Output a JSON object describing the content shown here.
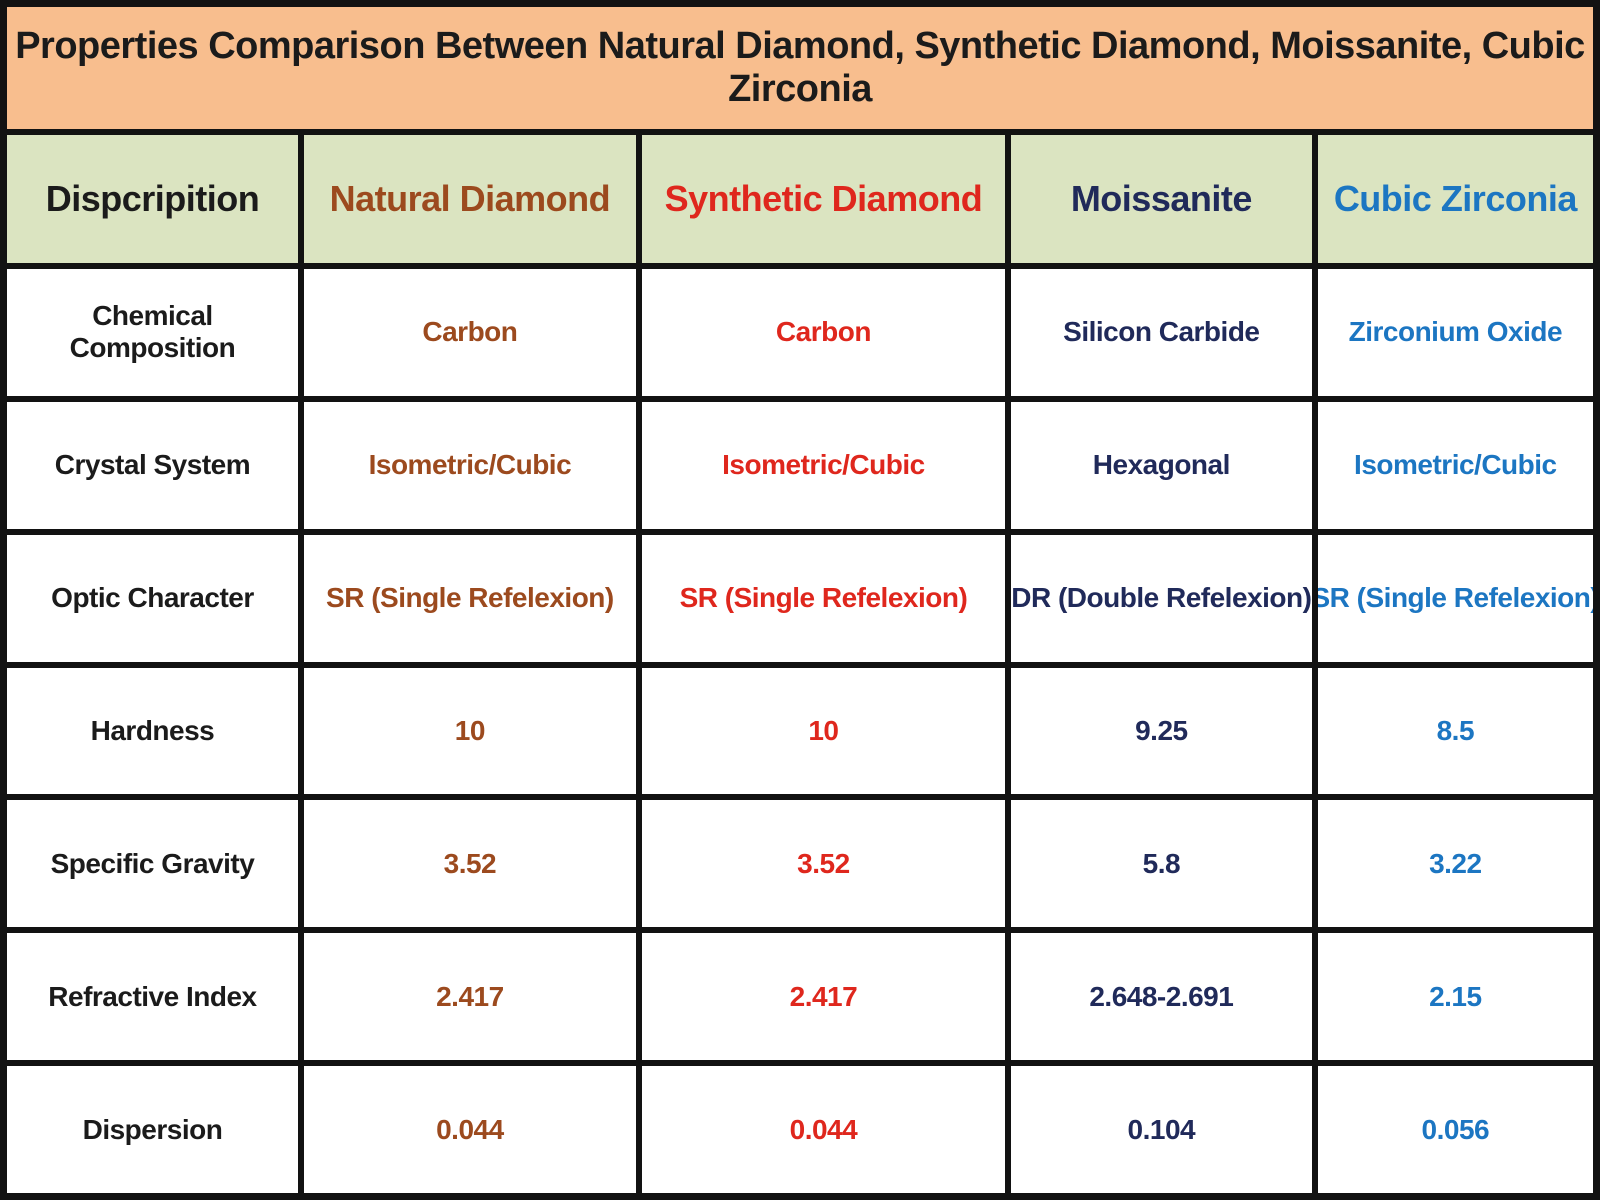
{
  "title": "Properties Comparison Between Natural Diamond, Synthetic Diamond, Moissanite, Cubic Zirconia",
  "columns": [
    "Dispcripition",
    "Natural Diamond",
    "Synthetic Diamond",
    "Moissanite",
    "Cubic Zirconia"
  ],
  "rows": [
    {
      "label": "Chemical Composition",
      "values": [
        "Carbon",
        "Carbon",
        "Silicon Carbide",
        "Zirconium Oxide"
      ]
    },
    {
      "label": "Crystal System",
      "values": [
        "Isometric/Cubic",
        "Isometric/Cubic",
        "Hexagonal",
        "Isometric/Cubic"
      ]
    },
    {
      "label": "Optic Character",
      "values": [
        "SR (Single Refelexion)",
        "SR (Single Refelexion)",
        "DR (Double Refelexion)",
        "SR (Single Refelexion)"
      ]
    },
    {
      "label": "Hardness",
      "values": [
        "10",
        "10",
        "9.25",
        "8.5"
      ]
    },
    {
      "label": "Specific Gravity",
      "values": [
        "3.52",
        "3.52",
        "5.8",
        "3.22"
      ]
    },
    {
      "label": "Refractive Index",
      "values": [
        "2.417",
        "2.417",
        "2.648-2.691",
        "2.15"
      ]
    },
    {
      "label": "Dispersion",
      "values": [
        "0.044",
        "0.044",
        "0.104",
        "0.056"
      ]
    }
  ],
  "colors": {
    "title_bg": "#F8BE8E",
    "header_bg": "#DBE4C1",
    "border": "#121212",
    "description_text": "#1B1B1B",
    "natural_diamond_text": "#9C4A1E",
    "synthetic_diamond_text": "#DF271D",
    "moissanite_text": "#202A5A",
    "cubic_zirconia_text": "#1C76C2"
  },
  "chart_data": {
    "type": "table",
    "title": "Properties Comparison Between Natural Diamond, Synthetic Diamond, Moissanite, Cubic Zirconia",
    "columns": [
      "Dispcripition",
      "Natural Diamond",
      "Synthetic Diamond",
      "Moissanite",
      "Cubic Zirconia"
    ],
    "rows": [
      [
        "Chemical Composition",
        "Carbon",
        "Carbon",
        "Silicon Carbide",
        "Zirconium Oxide"
      ],
      [
        "Crystal System",
        "Isometric/Cubic",
        "Isometric/Cubic",
        "Hexagonal",
        "Isometric/Cubic"
      ],
      [
        "Optic Character",
        "SR (Single Refelexion)",
        "SR (Single Refelexion)",
        "DR (Double Refelexion)",
        "SR (Single Refelexion)"
      ],
      [
        "Hardness",
        "10",
        "10",
        "9.25",
        "8.5"
      ],
      [
        "Specific Gravity",
        "3.52",
        "3.52",
        "5.8",
        "3.22"
      ],
      [
        "Refractive Index",
        "2.417",
        "2.417",
        "2.648-2.691",
        "2.15"
      ],
      [
        "Dispersion",
        "0.044",
        "0.044",
        "0.104",
        "0.056"
      ]
    ]
  }
}
